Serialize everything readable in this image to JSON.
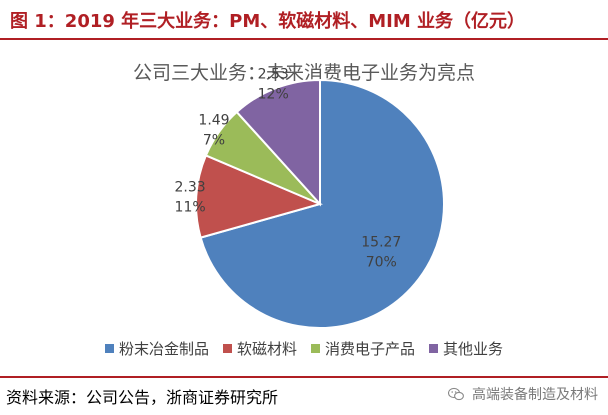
{
  "header": {
    "figure_title": "图 1：2019 年三大业务：PM、软磁材料、MIM 业务（亿元）"
  },
  "chart_data": {
    "type": "pie",
    "title": "公司三大业务：未来消费电子业务为亮点",
    "slices": [
      {
        "name": "粉末冶金制品",
        "value": 15.27,
        "percent_label": "70%",
        "color": "#4f81bd"
      },
      {
        "name": "软磁材料",
        "value": 2.33,
        "percent_label": "11%",
        "color": "#c0504d"
      },
      {
        "name": "消费电子产品",
        "value": 1.49,
        "percent_label": "7%",
        "color": "#9bbb59"
      },
      {
        "name": "其他业务",
        "value": 2.53,
        "percent_label": "12%",
        "color": "#8064a2"
      }
    ],
    "legend_position": "bottom"
  },
  "footer": {
    "source": "资料来源：公司公告，浙商证券研究所",
    "watermark": "高端装备制造及材料",
    "watermark_icon": "wechat-icon"
  }
}
